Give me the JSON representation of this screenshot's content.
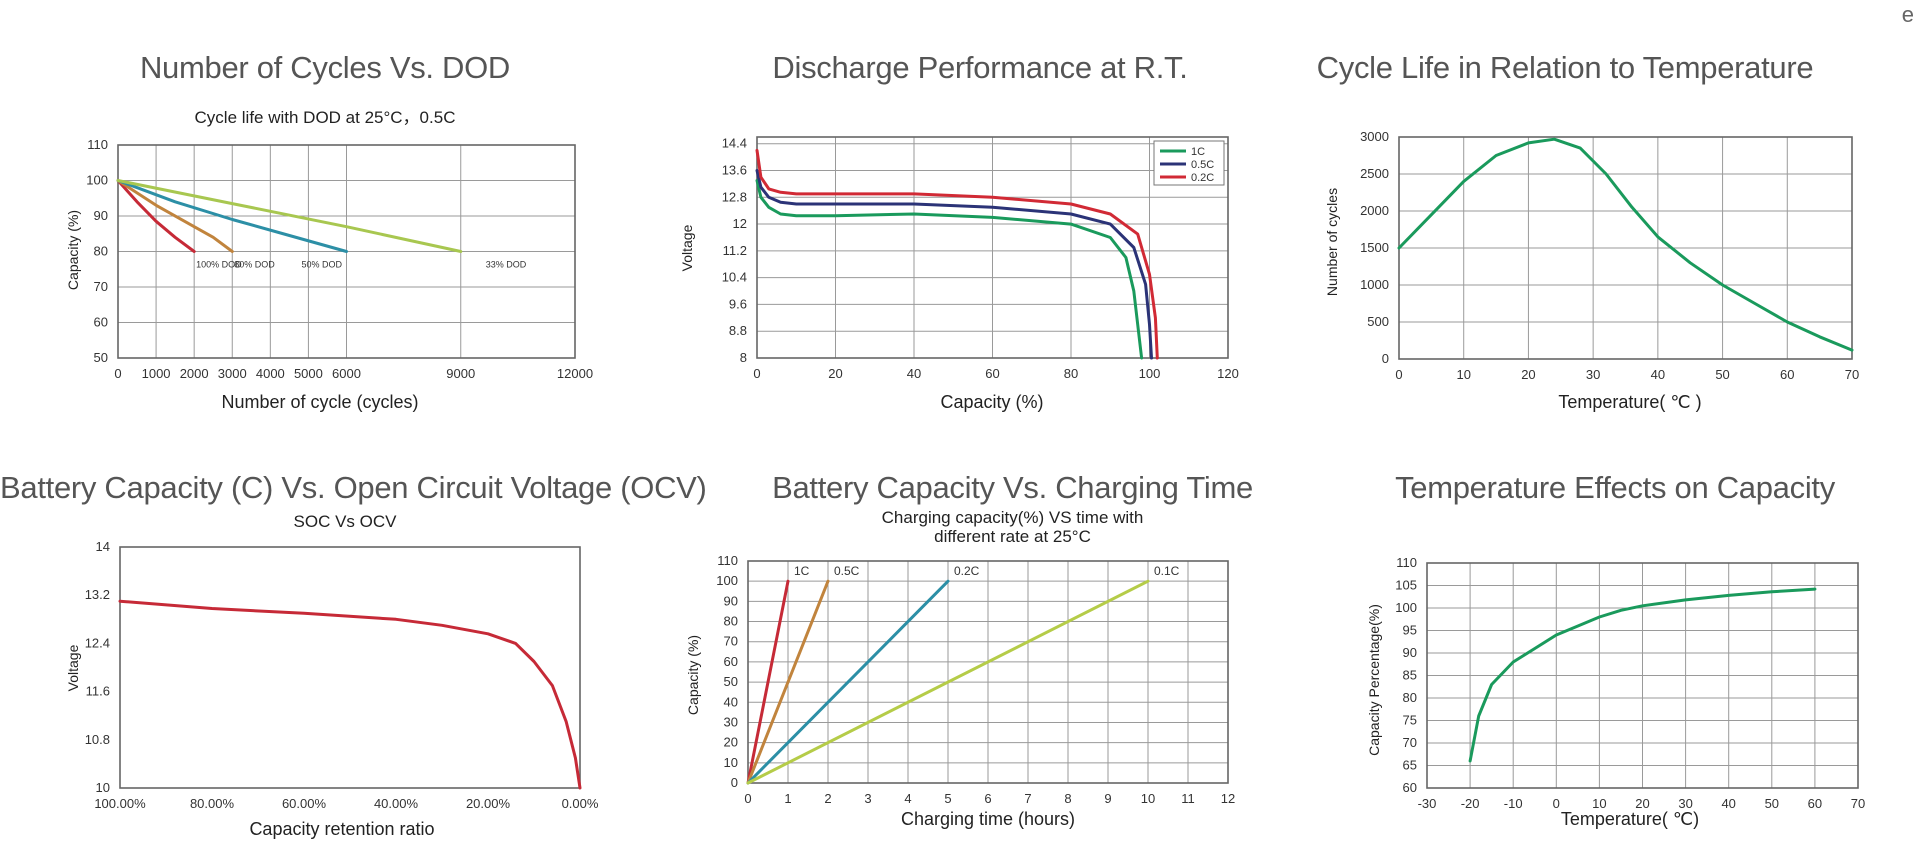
{
  "corner_text": "e",
  "chart_data": [
    {
      "id": "p1",
      "type": "line",
      "title": "Number of Cycles Vs. DOD",
      "subtitle": "Cycle life with DOD at 25°C，0.5C",
      "xlabel": "Number of cycle (cycles)",
      "ylabel": "Capacity (%)",
      "xlim": [
        0,
        12000
      ],
      "ylim": [
        50,
        110
      ],
      "xticks": [
        0,
        1000,
        2000,
        3000,
        4000,
        5000,
        6000,
        9000,
        12000
      ],
      "xtick_labels": [
        "0",
        "1000",
        "2000",
        "3000",
        "4000",
        "5000",
        "6000",
        "9000",
        "12000"
      ],
      "yticks": [
        50,
        60,
        70,
        80,
        90,
        100,
        110
      ],
      "ytick_labels": [
        "50",
        "60",
        "70",
        "80",
        "90",
        "100",
        "110"
      ],
      "grid": true,
      "series": [
        {
          "color": "#c62a37",
          "label": "100% DOD",
          "x": [
            0,
            500,
            1000,
            1500,
            2000
          ],
          "y": [
            100,
            94,
            88.5,
            84,
            80
          ]
        },
        {
          "color": "#c1843d",
          "label": "80% DOD",
          "x": [
            0,
            1000,
            2000,
            2500,
            3000
          ],
          "y": [
            100,
            93,
            87,
            84,
            80
          ]
        },
        {
          "color": "#2c8fa6",
          "label": "50% DOD",
          "x": [
            0,
            1500,
            3000,
            4500,
            6000
          ],
          "y": [
            100,
            94,
            89,
            84.5,
            80
          ]
        },
        {
          "color": "#a8c750",
          "label": "33% DOD",
          "x": [
            0,
            3000,
            6000,
            9000
          ],
          "y": [
            100,
            93.5,
            87,
            80
          ]
        }
      ]
    },
    {
      "id": "p2",
      "type": "line",
      "title": "Discharge Performance at R.T.",
      "xlabel": "Capacity (%)",
      "ylabel": "Voltage",
      "xlim": [
        0,
        120
      ],
      "ylim": [
        8,
        14.6
      ],
      "xticks": [
        0,
        20,
        40,
        60,
        80,
        100,
        120
      ],
      "xtick_labels": [
        "0",
        "20",
        "40",
        "60",
        "80",
        "100",
        "120"
      ],
      "yticks": [
        8,
        8.8,
        9.6,
        10.4,
        11.2,
        12,
        12.8,
        13.6,
        14.4
      ],
      "ytick_labels": [
        "8",
        "8.8",
        "9.6",
        "10.4",
        "11.2",
        "12",
        "12.8",
        "13.6",
        "14.4"
      ],
      "grid": true,
      "legend": "top-right",
      "series": [
        {
          "name": "1C",
          "color": "#1a9a5c",
          "x": [
            0,
            1,
            3,
            6,
            10,
            20,
            40,
            60,
            80,
            90,
            94,
            96,
            97,
            98
          ],
          "y": [
            13.3,
            12.8,
            12.5,
            12.3,
            12.25,
            12.25,
            12.3,
            12.2,
            12.0,
            11.6,
            11.0,
            10.0,
            9.0,
            8.0
          ]
        },
        {
          "name": "0.5C",
          "color": "#2b3377",
          "x": [
            0,
            1,
            3,
            6,
            10,
            20,
            40,
            60,
            80,
            90,
            96,
            99,
            100,
            100.5
          ],
          "y": [
            13.6,
            13.1,
            12.8,
            12.65,
            12.6,
            12.6,
            12.6,
            12.5,
            12.3,
            12.0,
            11.3,
            10.2,
            9.0,
            8.0
          ]
        },
        {
          "name": "0.2C",
          "color": "#d12a35",
          "x": [
            0,
            1,
            3,
            6,
            10,
            20,
            40,
            60,
            80,
            90,
            97,
            100,
            101.5,
            102
          ],
          "y": [
            14.2,
            13.4,
            13.05,
            12.95,
            12.9,
            12.9,
            12.9,
            12.8,
            12.6,
            12.3,
            11.7,
            10.5,
            9.2,
            8.0
          ]
        }
      ]
    },
    {
      "id": "p3",
      "type": "line",
      "title": "Cycle Life in Relation to Temperature",
      "xlabel": "Temperature( ℃ )",
      "ylabel": "Number of cycles",
      "xlim": [
        0,
        70
      ],
      "ylim": [
        0,
        3000
      ],
      "xticks": [
        0,
        10,
        20,
        30,
        40,
        50,
        60,
        70
      ],
      "xtick_labels": [
        "0",
        "10",
        "20",
        "30",
        "40",
        "50",
        "60",
        "70"
      ],
      "yticks": [
        0,
        500,
        1000,
        1500,
        2000,
        2500,
        3000
      ],
      "ytick_labels": [
        "0",
        "500",
        "1000",
        "1500",
        "2000",
        "2500",
        "3000"
      ],
      "grid": true,
      "series": [
        {
          "color": "#1a9a5c",
          "x": [
            0,
            5,
            10,
            15,
            20,
            24,
            28,
            32,
            36,
            40,
            45,
            50,
            55,
            60,
            65,
            70
          ],
          "y": [
            1500,
            1950,
            2400,
            2750,
            2920,
            2970,
            2850,
            2500,
            2050,
            1650,
            1300,
            1000,
            750,
            500,
            300,
            120
          ]
        }
      ]
    },
    {
      "id": "p4",
      "type": "line",
      "title": "Battery Capacity (C) Vs. Open Circuit Voltage (OCV)",
      "subtitle": "SOC Vs OCV",
      "xlabel": "Capacity retention ratio",
      "ylabel": "Voltage",
      "xlim": [
        100,
        0
      ],
      "ylim": [
        10,
        14
      ],
      "xticks": [
        100,
        80,
        60,
        40,
        20,
        0
      ],
      "xtick_labels": [
        "100.00%",
        "80.00%",
        "60.00%",
        "40.00%",
        "20.00%",
        "0.00%"
      ],
      "yticks": [
        10,
        10.8,
        11.6,
        12.4,
        13.2,
        14
      ],
      "ytick_labels": [
        "10",
        "10.8",
        "11.6",
        "12.4",
        "13.2",
        "14"
      ],
      "grid": false,
      "series": [
        {
          "color": "#c62a37",
          "x": [
            100,
            80,
            60,
            40,
            30,
            20,
            14,
            10,
            6,
            3,
            1,
            0
          ],
          "y": [
            13.1,
            12.98,
            12.9,
            12.8,
            12.7,
            12.56,
            12.4,
            12.1,
            11.7,
            11.1,
            10.5,
            10.0
          ]
        }
      ]
    },
    {
      "id": "p5",
      "type": "line",
      "title": "Battery Capacity Vs. Charging Time",
      "subtitle": "Charging capacity(%) VS time with different rate at 25°C",
      "subtitle_lines": [
        "Charging capacity(%) VS time with",
        "different rate at 25°C"
      ],
      "xlabel": "Charging time (hours)",
      "ylabel": "Capacity (%)",
      "xlim": [
        0,
        12
      ],
      "ylim": [
        0,
        110
      ],
      "xticks": [
        0,
        1,
        2,
        3,
        4,
        5,
        6,
        7,
        8,
        9,
        10,
        11,
        12
      ],
      "xtick_labels": [
        "0",
        "1",
        "2",
        "3",
        "4",
        "5",
        "6",
        "7",
        "8",
        "9",
        "10",
        "11",
        "12"
      ],
      "yticks": [
        0,
        10,
        20,
        30,
        40,
        50,
        60,
        70,
        80,
        90,
        100,
        110
      ],
      "ytick_labels": [
        "0",
        "10",
        "20",
        "30",
        "40",
        "50",
        "60",
        "70",
        "80",
        "90",
        "100",
        "110"
      ],
      "grid": true,
      "series": [
        {
          "label": "1C",
          "color": "#c62a37",
          "x": [
            0,
            1
          ],
          "y": [
            0,
            100
          ]
        },
        {
          "label": "0.5C",
          "color": "#c1843d",
          "x": [
            0,
            2
          ],
          "y": [
            0,
            100
          ]
        },
        {
          "label": "0.2C",
          "color": "#2c8fa6",
          "x": [
            0,
            5
          ],
          "y": [
            0,
            100
          ]
        },
        {
          "label": "0.1C",
          "color": "#b5cc48",
          "x": [
            0,
            10
          ],
          "y": [
            0,
            100
          ]
        }
      ]
    },
    {
      "id": "p6",
      "type": "line",
      "title": "Temperature Effects on Capacity",
      "xlabel": "Temperature( ℃)",
      "ylabel": "Capacity Percentage(%)",
      "xlim": [
        -30,
        70
      ],
      "ylim": [
        60,
        110
      ],
      "xticks": [
        -30,
        -20,
        -10,
        0,
        10,
        20,
        30,
        40,
        50,
        60,
        70
      ],
      "xtick_labels": [
        "-30",
        "-20",
        "-10",
        "0",
        "10",
        "20",
        "30",
        "40",
        "50",
        "60",
        "70"
      ],
      "yticks": [
        60,
        65,
        70,
        75,
        80,
        85,
        90,
        95,
        100,
        105,
        110
      ],
      "ytick_labels": [
        "60",
        "65",
        "70",
        "75",
        "80",
        "85",
        "90",
        "95",
        "100",
        "105",
        "110"
      ],
      "grid": true,
      "series": [
        {
          "color": "#1a9a5c",
          "x": [
            -20,
            -18,
            -15,
            -10,
            -5,
            0,
            5,
            10,
            15,
            20,
            30,
            40,
            50,
            60
          ],
          "y": [
            66,
            76,
            83,
            88,
            91,
            94,
            96,
            98,
            99.5,
            100.5,
            101.8,
            102.8,
            103.6,
            104.2
          ]
        }
      ]
    }
  ]
}
